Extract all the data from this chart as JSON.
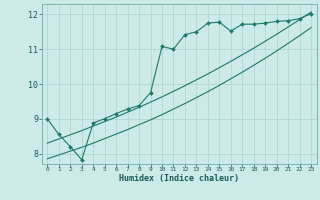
{
  "xlabel": "Humidex (Indice chaleur)",
  "ylabel": "",
  "bg_color": "#cceae8",
  "grid_color": "#aad4d0",
  "line_color": "#1a7a6a",
  "xlim": [
    -0.5,
    23.5
  ],
  "ylim": [
    7.7,
    12.3
  ],
  "xticks": [
    0,
    1,
    2,
    3,
    4,
    5,
    6,
    7,
    8,
    9,
    10,
    11,
    12,
    13,
    14,
    15,
    16,
    17,
    18,
    19,
    20,
    21,
    22,
    23
  ],
  "yticks": [
    8,
    9,
    10,
    11,
    12
  ],
  "line1_x": [
    0,
    1,
    2,
    3,
    4,
    5,
    6,
    7,
    8,
    9,
    10,
    11,
    12,
    13,
    14,
    15,
    16,
    17,
    18,
    19,
    20,
    21,
    22,
    23
  ],
  "line1_y": [
    9.0,
    8.55,
    8.2,
    7.82,
    8.88,
    9.0,
    9.15,
    9.28,
    9.38,
    9.75,
    11.08,
    11.0,
    11.42,
    11.5,
    11.75,
    11.78,
    11.52,
    11.72,
    11.72,
    11.75,
    11.8,
    11.82,
    11.88,
    12.02
  ],
  "line2_x": [
    0,
    1,
    2,
    3,
    4,
    5,
    6,
    7,
    8,
    9,
    10,
    11,
    12,
    13,
    14,
    15,
    16,
    17,
    18,
    19,
    20,
    21,
    22,
    23
  ],
  "line2_y": [
    7.85,
    7.96,
    8.07,
    8.18,
    8.3,
    8.43,
    8.56,
    8.69,
    8.83,
    8.97,
    9.12,
    9.28,
    9.44,
    9.61,
    9.78,
    9.96,
    10.15,
    10.34,
    10.54,
    10.74,
    10.95,
    11.17,
    11.39,
    11.62
  ],
  "line3_x": [
    0,
    1,
    2,
    3,
    4,
    5,
    6,
    7,
    8,
    9,
    10,
    11,
    12,
    13,
    14,
    15,
    16,
    17,
    18,
    19,
    20,
    21,
    22,
    23
  ],
  "line3_y": [
    8.3,
    8.42,
    8.54,
    8.66,
    8.79,
    8.92,
    9.05,
    9.19,
    9.33,
    9.48,
    9.63,
    9.79,
    9.95,
    10.12,
    10.29,
    10.47,
    10.65,
    10.84,
    11.03,
    11.23,
    11.43,
    11.64,
    11.85,
    12.07
  ]
}
